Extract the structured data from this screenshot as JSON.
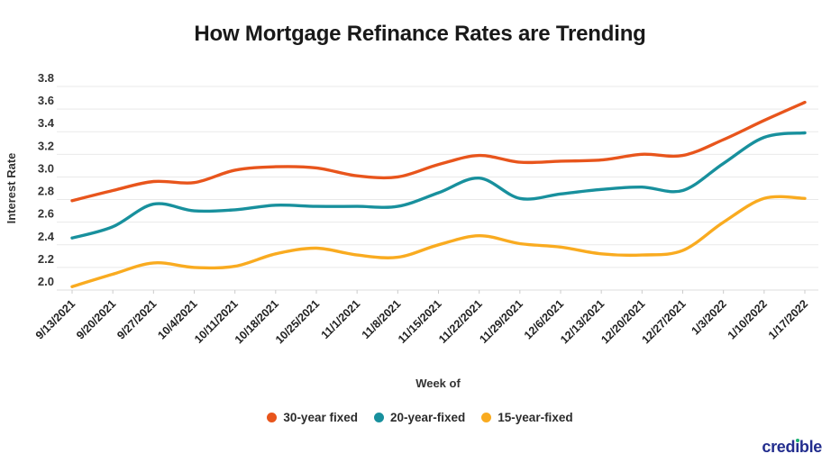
{
  "header": {
    "title": "How Mortgage Refinance Rates are Trending"
  },
  "chart_data": {
    "type": "line",
    "title": "How Mortgage Refinance Rates are Trending",
    "xlabel": "Week of",
    "ylabel": "Interest Rate",
    "ylim": [
      2.0,
      3.8
    ],
    "y_ticks": [
      "3.8",
      "3.6",
      "3.4",
      "3.2",
      "3.0",
      "2.8",
      "2.6",
      "2.4",
      "2.2",
      "2.0"
    ],
    "grid": true,
    "legend_position": "bottom",
    "categories": [
      "9/13/2021",
      "9/20/2021",
      "9/27/2021",
      "10/4/2021",
      "10/11/2021",
      "10/18/2021",
      "10/25/2021",
      "11/1/2021",
      "11/8/2021",
      "11/15/2021",
      "11/22/2021",
      "11/29/2021",
      "12/6/2021",
      "12/13/2021",
      "12/20/2021",
      "12/27/2021",
      "1/3/2022",
      "1/10/2022",
      "1/17/2022"
    ],
    "series": [
      {
        "name": "30-year fixed",
        "color": "#e8551c",
        "values": [
          2.79,
          2.88,
          2.96,
          2.95,
          3.06,
          3.09,
          3.08,
          3.01,
          3.0,
          3.11,
          3.19,
          3.13,
          3.14,
          3.15,
          3.2,
          3.19,
          3.33,
          3.5,
          3.66
        ]
      },
      {
        "name": "20-year-fixed",
        "color": "#18909d",
        "values": [
          2.46,
          2.56,
          2.76,
          2.7,
          2.71,
          2.75,
          2.74,
          2.74,
          2.74,
          2.86,
          2.99,
          2.81,
          2.85,
          2.89,
          2.91,
          2.88,
          3.12,
          3.35,
          3.39
        ]
      },
      {
        "name": "15-year-fixed",
        "color": "#f9ab20",
        "values": [
          2.03,
          2.14,
          2.24,
          2.2,
          2.21,
          2.32,
          2.37,
          2.31,
          2.29,
          2.4,
          2.48,
          2.41,
          2.38,
          2.32,
          2.31,
          2.35,
          2.6,
          2.81,
          2.81
        ]
      }
    ]
  },
  "footer": {
    "logo": {
      "text": "credible",
      "left": "cred",
      "dotless_i": "ı",
      "right": "ble"
    }
  }
}
